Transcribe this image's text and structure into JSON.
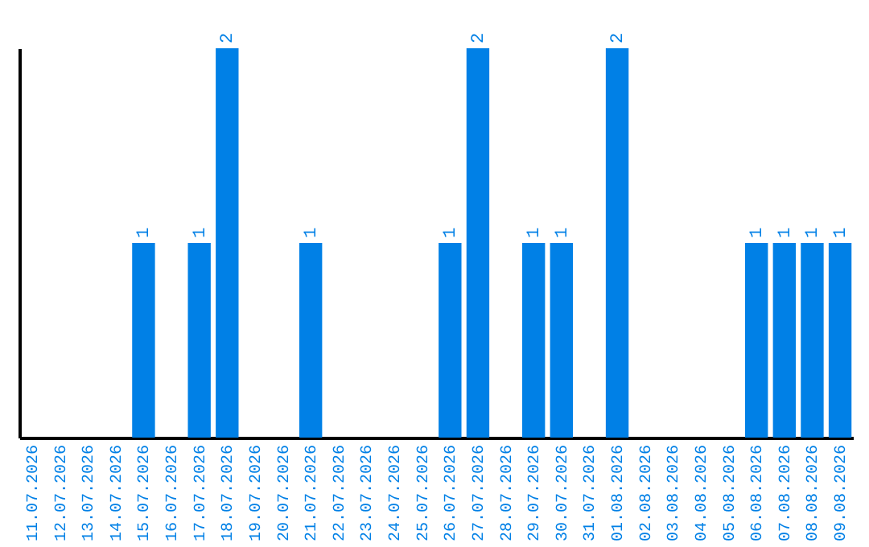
{
  "chart_data": {
    "type": "bar",
    "categories": [
      "11.07.2026",
      "12.07.2026",
      "13.07.2026",
      "14.07.2026",
      "15.07.2026",
      "16.07.2026",
      "17.07.2026",
      "18.07.2026",
      "19.07.2026",
      "20.07.2026",
      "21.07.2026",
      "22.07.2026",
      "23.07.2026",
      "24.07.2026",
      "25.07.2026",
      "26.07.2026",
      "27.07.2026",
      "28.07.2026",
      "29.07.2026",
      "30.07.2026",
      "31.07.2026",
      "01.08.2026",
      "02.08.2026",
      "03.08.2026",
      "04.08.2026",
      "05.08.2026",
      "06.08.2026",
      "07.08.2026",
      "08.08.2026",
      "09.08.2026"
    ],
    "values": [
      0,
      0,
      0,
      0,
      1,
      0,
      1,
      2,
      0,
      0,
      1,
      0,
      0,
      0,
      0,
      1,
      2,
      0,
      1,
      1,
      0,
      2,
      0,
      0,
      0,
      0,
      1,
      1,
      1,
      1
    ],
    "value_labels": [
      null,
      null,
      null,
      null,
      "1",
      null,
      "1",
      "2",
      null,
      null,
      "1",
      null,
      null,
      null,
      null,
      "1",
      "2",
      null,
      "1",
      "1",
      null,
      "2",
      null,
      null,
      null,
      null,
      "1",
      "1",
      "1",
      "1"
    ],
    "color": "#0080e6"
  }
}
